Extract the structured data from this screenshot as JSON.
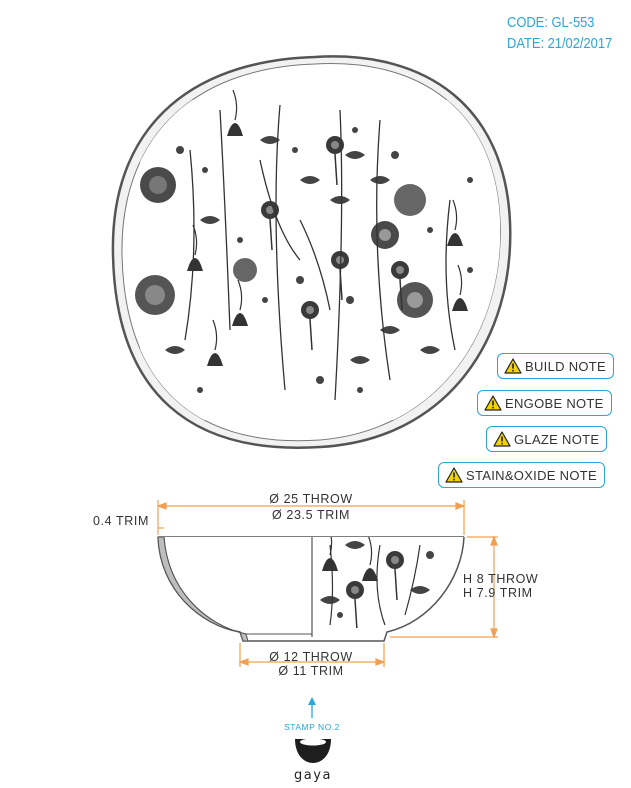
{
  "header": {
    "code": "CODE: GL-553",
    "date": "DATE: 21/02/2017"
  },
  "notes": [
    {
      "label": "BUILD NOTE"
    },
    {
      "label": "ENGOBE NOTE"
    },
    {
      "label": "GLAZE NOTE"
    },
    {
      "label": "STAIN&OXIDE NOTE"
    }
  ],
  "dimensions": {
    "rim_thickness": "0.4 TRIM",
    "top_throw": "Ø 25 THROW",
    "top_trim": "Ø 23.5 TRIM",
    "height_throw": "H 8 THROW",
    "height_trim": "H 7.9 TRIM",
    "foot_throw": "Ø 12 THROW",
    "foot_trim": "Ø 11 TRIM"
  },
  "stamp": {
    "label": "STAMP NO.2",
    "brand": "gaya"
  },
  "colors": {
    "accent": "#2aa6d8",
    "dimension": "#f0a050",
    "warning": "#f4d400",
    "outline": "#555555"
  }
}
